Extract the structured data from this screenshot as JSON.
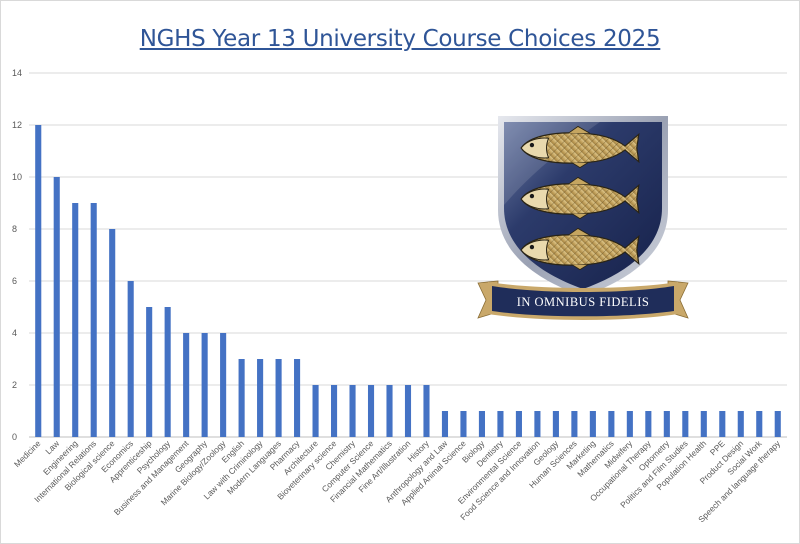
{
  "chart_data": {
    "type": "bar",
    "title": "NGHS Year 13 University Course Choices 2025",
    "xlabel": "",
    "ylabel": "",
    "ylim": [
      0,
      14
    ],
    "yticks": [
      0,
      2,
      4,
      6,
      8,
      10,
      12,
      14
    ],
    "grid": true,
    "legend": "none",
    "bar_color": "#4472c4",
    "categories": [
      "Medicine",
      "Law",
      "Engineering",
      "International Relations",
      "Biological science",
      "Economics",
      "Apprenticeship",
      "Psychology",
      "Business and Management",
      "Geography",
      "Marine Biology/Zoology",
      "English",
      "Law with Criminology",
      "Modern Languages",
      "Pharmacy",
      "Architecture",
      "Bioveterinary science",
      "Chemistry",
      "Computer Science",
      "Financial Mathematics",
      "Fine Art/Illustration",
      "History",
      "Anthropology and Law",
      "Applied Animal Science",
      "Biology",
      "Dentistry",
      "Environmental Science",
      "Food Science and Innovation",
      "Geology",
      "Human Sciences",
      "Marketing",
      "Mathematics",
      "Midwifery",
      "Occupational Therapy",
      "Optometry",
      "Politics and Film Studies",
      "Population Health",
      "PPE",
      "Product Design",
      "Social Work",
      "Speech and language therapy"
    ],
    "values": [
      12,
      10,
      9,
      9,
      8,
      6,
      5,
      5,
      4,
      4,
      4,
      3,
      3,
      3,
      3,
      2,
      2,
      2,
      2,
      2,
      2,
      2,
      1,
      1,
      1,
      1,
      1,
      1,
      1,
      1,
      1,
      1,
      1,
      1,
      1,
      1,
      1,
      1,
      1,
      1,
      1
    ]
  },
  "crest": {
    "motto": "IN OMNIBUS FIDELIS",
    "shield_color": "#1f2d5a",
    "fish_color": "#c8a866"
  }
}
